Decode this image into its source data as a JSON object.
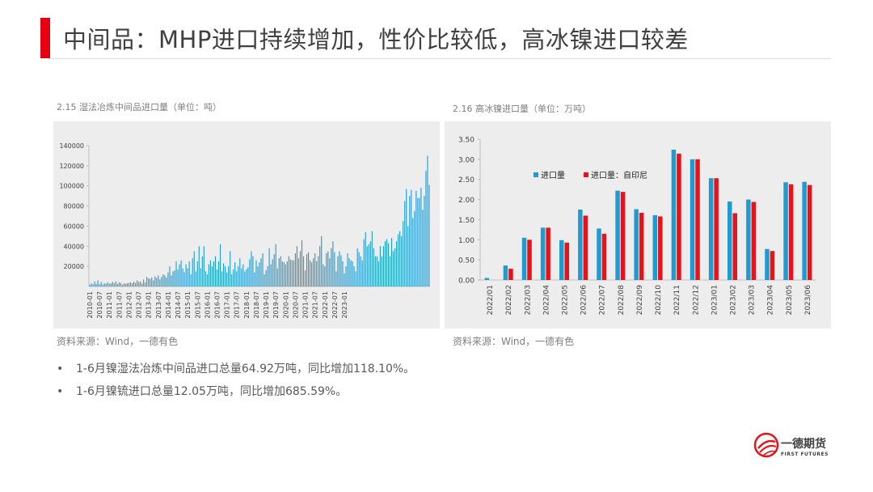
{
  "page": {
    "title": "中间品：MHP进口持续增加，性价比较低，高冰镍进口较差"
  },
  "left": {
    "caption": "2.15 湿法冶炼中间品进口量（单位：吨）",
    "source": "资料来源：Wind，一德有色"
  },
  "right": {
    "caption": "2.16 高冰镍进口量（单位：万吨）",
    "source": "资料来源：Wind，一德有色"
  },
  "bullets": [
    "1-6月镍湿法冶炼中间品进口总量64.92万吨，同比增加118.10%。",
    "1-6月镍锍进口总量12.05万吨，同比增加685.59%。"
  ],
  "logo": {
    "name": "一德期货",
    "en": "FIRST FUTURES"
  },
  "chart_data": [
    {
      "type": "bar",
      "ylim": [
        0,
        140000
      ],
      "yticks": [
        "20000",
        "40000",
        "60000",
        "80000",
        "100000",
        "120000",
        "140000"
      ],
      "xtick_labels": [
        "2010-01",
        "2010-07",
        "2011-01",
        "2011-07",
        "2012-01",
        "2012-07",
        "2013-01",
        "2013-07",
        "2014-01",
        "2014-07",
        "2015-01",
        "2015-07",
        "2016-01",
        "2016-07",
        "2017-01",
        "2017-07",
        "2018-01",
        "2018-07",
        "2019-01",
        "2019-07",
        "2020-01",
        "2020-07",
        "2021-01",
        "2021-07",
        "2022-01",
        "2022-07",
        "2023-01"
      ],
      "color": "#1f9bcf",
      "values": [
        1500,
        3200,
        2000,
        5000,
        2500,
        6000,
        2200,
        4500,
        2000,
        3000,
        2800,
        4200,
        2800,
        3000,
        4500,
        3200,
        5000,
        2500,
        4000,
        3500,
        1800,
        3000,
        2800,
        3200,
        3500,
        4200,
        3200,
        4800,
        3500,
        6000,
        4500,
        5000,
        3000,
        7000,
        4000,
        9500,
        8000,
        7500,
        9000,
        6000,
        10000,
        8500,
        11000,
        7000,
        9500,
        12000,
        11000,
        9000,
        14000,
        20000,
        11000,
        15000,
        16000,
        25000,
        17000,
        22000,
        26000,
        18000,
        14000,
        22000,
        18000,
        25000,
        12000,
        28000,
        35000,
        15000,
        25000,
        40000,
        18000,
        30000,
        40000,
        15000,
        12000,
        22000,
        26000,
        20000,
        25000,
        30000,
        17000,
        25000,
        42000,
        15000,
        23000,
        20000,
        14000,
        20000,
        35000,
        12000,
        17000,
        24000,
        15000,
        20000,
        28000,
        18000,
        22000,
        15000,
        17000,
        19000,
        27000,
        35000,
        30000,
        14000,
        26000,
        20000,
        24000,
        28000,
        33000,
        12000,
        16000,
        20000,
        38000,
        22000,
        27000,
        32000,
        42000,
        18000,
        28000,
        30000,
        25000,
        24000,
        22000,
        25000,
        30000,
        27000,
        26000,
        26000,
        33000,
        40000,
        28000,
        35000,
        46000,
        30000,
        16000,
        32000,
        34000,
        26000,
        24000,
        28000,
        33000,
        25000,
        30000,
        40000,
        50000,
        22000,
        20000,
        33000,
        35000,
        28000,
        38000,
        45000,
        34000,
        15000,
        30000,
        35000,
        31000,
        25000,
        13000,
        20000,
        33000,
        28000,
        26000,
        25000,
        20000,
        15000,
        38000,
        34000,
        30000,
        26000,
        47000,
        54000,
        40000,
        42000,
        45000,
        55000,
        38000,
        30000,
        30000,
        25000,
        40000,
        30000,
        40000,
        45000,
        47000,
        43000,
        30000,
        48000,
        35000,
        38000,
        45000,
        52000,
        55000,
        50000,
        65000,
        85000,
        97000,
        60000,
        90000,
        96000,
        68000,
        75000,
        95000,
        88000,
        88000,
        98000,
        76000,
        90000,
        115000,
        130000,
        101000
      ]
    },
    {
      "type": "bar",
      "categories": [
        "2022/01",
        "2022/02",
        "2022/03",
        "2022/04",
        "2022/05",
        "2022/06",
        "2022/07",
        "2022/08",
        "2022/09",
        "2022/10",
        "2022/11",
        "2022/12",
        "2023/01",
        "2023/02",
        "2023/03",
        "2023/04",
        "2023/05",
        "2023/06"
      ],
      "ylim": [
        0,
        3.5
      ],
      "yticks": [
        "0.00",
        "0.50",
        "1.00",
        "1.50",
        "2.00",
        "2.50",
        "3.00",
        "3.50"
      ],
      "legend_position": "top-left",
      "series": [
        {
          "name": "进口量",
          "color": "#1f9bcf",
          "values": [
            0.05,
            0.36,
            1.05,
            1.3,
            0.99,
            1.75,
            1.28,
            2.22,
            1.76,
            1.61,
            3.24,
            3.0,
            2.53,
            1.95,
            2.0,
            0.77,
            2.43,
            2.44
          ]
        },
        {
          "name": "进口量：自印尼",
          "color": "#e8121a",
          "values": [
            0.0,
            0.28,
            1.0,
            1.3,
            0.93,
            1.6,
            1.15,
            2.19,
            1.67,
            1.58,
            3.14,
            3.0,
            2.53,
            1.66,
            1.94,
            0.72,
            2.38,
            2.36
          ]
        }
      ]
    }
  ]
}
